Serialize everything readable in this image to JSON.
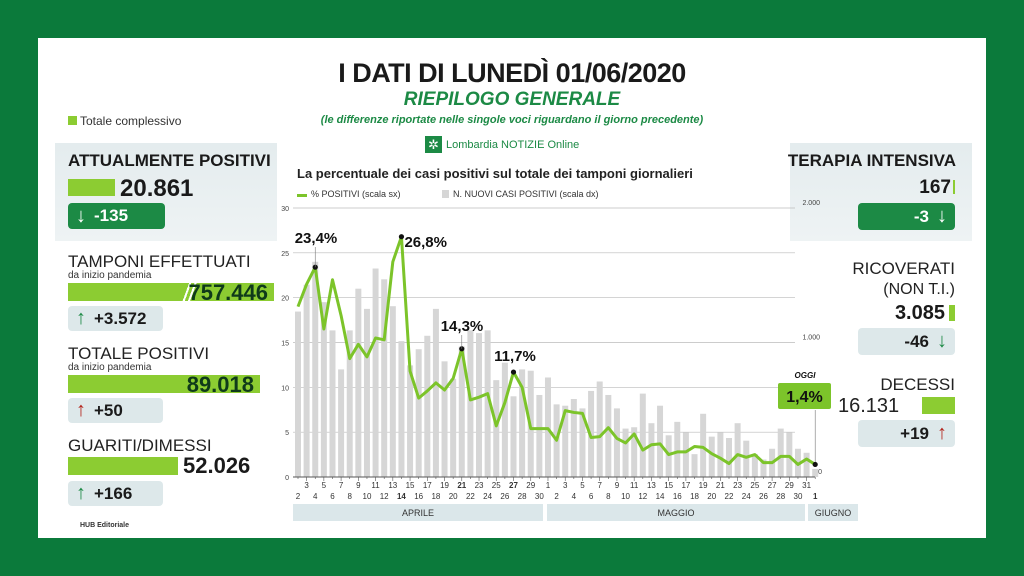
{
  "header": {
    "title": "I DATI DI LUNEDÌ 01/06/2020",
    "subtitle": "RIEPILOGO GENERALE",
    "note": "(le differenze riportate nelle singole voci riguardano il giorno precedente)",
    "brand": "Lombardia NOTIZIE Online"
  },
  "legend_total": "Totale complessivo",
  "left": {
    "attualmente": {
      "label": "ATTUALMENTE POSITIVI",
      "value": "20.861",
      "delta": "-135",
      "arrow": "↓"
    },
    "tamponi": {
      "label": "TAMPONI EFFETTUATI",
      "sub": "da inizio pandemia",
      "value": "757.446",
      "delta": "+3.572",
      "arrow": "↑"
    },
    "totale": {
      "label": "TOTALE POSITIVI",
      "sub": "da inizio pandemia",
      "value": "89.018",
      "delta": "+50",
      "arrow": "↑"
    },
    "guariti": {
      "label": "GUARITI/DIMESSI",
      "value": "52.026",
      "delta": "+166",
      "arrow": "↑"
    }
  },
  "right": {
    "terapia": {
      "label": "TERAPIA INTENSIVA",
      "value": "167",
      "delta": "-3",
      "arrow": "↓"
    },
    "ricoverati": {
      "label": "RICOVERATI",
      "label2": "(NON T.I.)",
      "value": "3.085",
      "delta": "-46",
      "arrow": "↓"
    },
    "decessi": {
      "label": "DECESSI",
      "value": "16.131",
      "delta": "+19",
      "arrow": "↑"
    }
  },
  "footer": "HUB Editoriale",
  "colors": {
    "frame": "#0b7a3b",
    "accent": "#8ccc32",
    "line": "#7cc42a",
    "bars": "#d6d6d6",
    "down_red": "#b3241b",
    "dark_green": "#1c8a45"
  },
  "chart_data": {
    "type": "bar+line",
    "title": "La percentuale dei casi positivi sul totale dei tamponi giornalieri",
    "legend": [
      "% POSITIVI (scala sx)",
      "N. NUOVI CASI POSITIVI (scala dx)"
    ],
    "y_left": {
      "range": [
        0,
        30
      ],
      "ticks": [
        "0",
        "5",
        "10",
        "15",
        "20",
        "25",
        "30"
      ]
    },
    "y_right": {
      "range": [
        0,
        2000
      ],
      "ticks": [
        "0",
        "1.000",
        "2.000"
      ]
    },
    "months": [
      "APRILE",
      "MAGGIO",
      "GIUGNO"
    ],
    "days": [
      "2",
      "3",
      "4",
      "5",
      "6",
      "7",
      "8",
      "9",
      "10",
      "11",
      "12",
      "13",
      "14",
      "15",
      "16",
      "17",
      "18",
      "19",
      "20",
      "21",
      "22",
      "23",
      "24",
      "25",
      "26",
      "27",
      "28",
      "29",
      "30",
      "1",
      "2",
      "3",
      "4",
      "5",
      "6",
      "7",
      "8",
      "9",
      "10",
      "11",
      "12",
      "13",
      "14",
      "15",
      "16",
      "17",
      "18",
      "19",
      "20",
      "21",
      "22",
      "23",
      "24",
      "25",
      "26",
      "27",
      "28",
      "29",
      "30",
      "31",
      "1"
    ],
    "bold_days_index": [
      12,
      19,
      25,
      60
    ],
    "series": [
      {
        "name": "% POSITIVI (scala sx)",
        "type": "line",
        "values": [
          19,
          21.5,
          23.4,
          16.5,
          22,
          18,
          13.2,
          14.8,
          13.4,
          15.5,
          15.3,
          24,
          26.8,
          11.8,
          8.8,
          9.6,
          10.5,
          9.7,
          11,
          14.3,
          8.6,
          8.9,
          9.3,
          5.7,
          8.3,
          11.7,
          10,
          5.4,
          5.4,
          5.4,
          4.1,
          7.4,
          7.2,
          7.1,
          4.4,
          4.5,
          5.5,
          4.3,
          3.8,
          4.8,
          3,
          3.6,
          3.7,
          2.5,
          2.8,
          2.8,
          3.4,
          3.3,
          2.6,
          2.1,
          1.5,
          2.5,
          2.2,
          2.5,
          1.6,
          1.6,
          2.3,
          2.3,
          1.4,
          2,
          1.4
        ]
      },
      {
        "name": "N. NUOVI CASI POSITIVI (scala dx)",
        "type": "bar",
        "values": [
          1230,
          1430,
          1600,
          1300,
          1090,
          800,
          1090,
          1400,
          1250,
          1550,
          1470,
          1270,
          1010,
          830,
          950,
          1050,
          1250,
          860,
          730,
          970,
          1090,
          1070,
          1090,
          720,
          850,
          600,
          800,
          790,
          610,
          740,
          540,
          530,
          580,
          510,
          640,
          710,
          610,
          510,
          360,
          370,
          620,
          400,
          530,
          310,
          410,
          330,
          170,
          470,
          300,
          330,
          290,
          400,
          270,
          170,
          130,
          210,
          360,
          330,
          210,
          180,
          60
        ]
      }
    ],
    "annotations": [
      {
        "index": 2,
        "label": "23,4%"
      },
      {
        "index": 12,
        "label": "26,8%"
      },
      {
        "index": 19,
        "label": "14,3%"
      },
      {
        "index": 25,
        "label": "11,7%"
      }
    ],
    "today": {
      "tag": "OGGI",
      "label": "1,4%"
    }
  }
}
